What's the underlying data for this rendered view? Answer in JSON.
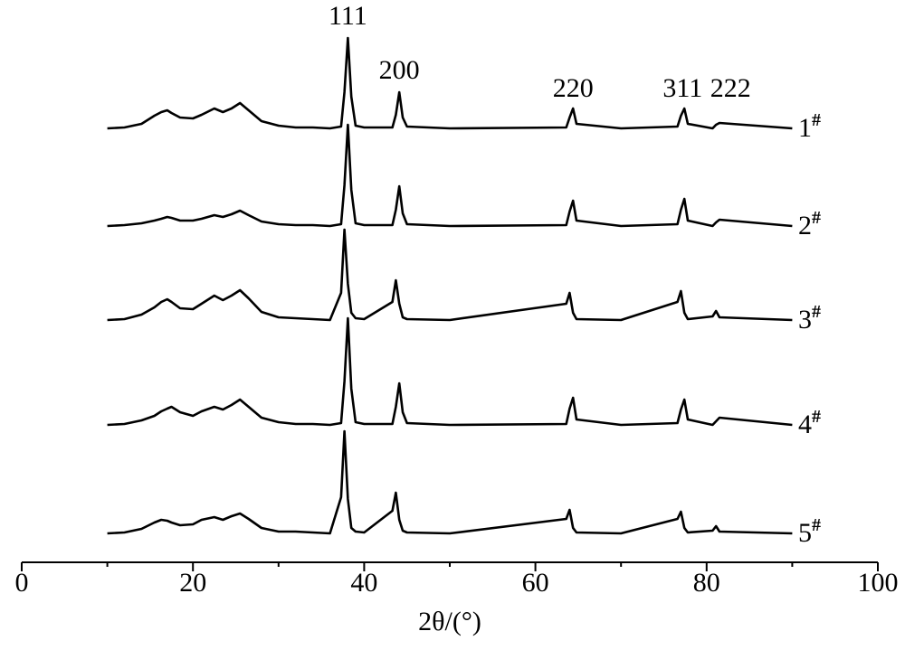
{
  "chart_data": {
    "type": "line",
    "xlabel": "2θ/(°)",
    "xlim": [
      0,
      100
    ],
    "xticks": [
      0,
      20,
      40,
      60,
      80,
      100
    ],
    "xminor": [
      10,
      30,
      50,
      70,
      90
    ],
    "x": [
      10,
      12,
      14,
      15.5,
      16.3,
      17,
      17.5,
      18.5,
      20,
      21,
      22.5,
      23.5,
      24.5,
      25.5,
      26.5,
      28,
      30,
      32,
      34,
      36,
      37.3,
      37.7,
      38.1,
      38.5,
      39,
      40,
      43.3,
      43.7,
      44.1,
      44.5,
      45,
      50,
      63.6,
      64,
      64.4,
      64.8,
      70,
      76.6,
      77,
      77.4,
      77.8,
      80.7,
      81.1,
      81.5,
      90
    ],
    "series": [
      {
        "name": "1#",
        "color": "#000000",
        "values": [
          0,
          1,
          5,
          14,
          18,
          20,
          17,
          12,
          11,
          15,
          22,
          18,
          22,
          28,
          20,
          8,
          3,
          1,
          1,
          0,
          2,
          40,
          100,
          35,
          3,
          1,
          1,
          15,
          40,
          12,
          2,
          0,
          1,
          12,
          22,
          5,
          0,
          2,
          14,
          22,
          5,
          0,
          4,
          6,
          0
        ]
      },
      {
        "name": "2#",
        "color": "#000000",
        "values": [
          0,
          1,
          3,
          6,
          8,
          10,
          9,
          6,
          6,
          8,
          12,
          10,
          13,
          17,
          12,
          5,
          2,
          1,
          1,
          0,
          2,
          45,
          112,
          40,
          3,
          1,
          1,
          18,
          44,
          14,
          2,
          0,
          1,
          16,
          28,
          6,
          0,
          2,
          18,
          30,
          6,
          0,
          4,
          7,
          0
        ]
      },
      {
        "name": "3#",
        "color": "#000000",
        "values": [
          0,
          1,
          6,
          14,
          20,
          23,
          20,
          13,
          12,
          18,
          27,
          22,
          27,
          33,
          24,
          9,
          3,
          2,
          1,
          0,
          30,
          100,
          40,
          8,
          2,
          1,
          20,
          44,
          18,
          3,
          1,
          0,
          18,
          30,
          8,
          1,
          0,
          20,
          32,
          8,
          1,
          4,
          10,
          3,
          0
        ]
      },
      {
        "name": "4#",
        "color": "#000000",
        "values": [
          0,
          1,
          5,
          10,
          15,
          18,
          20,
          14,
          10,
          15,
          20,
          17,
          22,
          28,
          20,
          8,
          3,
          1,
          1,
          0,
          2,
          48,
          118,
          40,
          3,
          1,
          1,
          20,
          46,
          14,
          2,
          0,
          1,
          18,
          30,
          6,
          0,
          2,
          17,
          28,
          6,
          0,
          4,
          8,
          0
        ]
      },
      {
        "name": "5#",
        "color": "#000000",
        "values": [
          0,
          1,
          5,
          12,
          15,
          14,
          12,
          9,
          10,
          15,
          18,
          15,
          19,
          22,
          16,
          6,
          2,
          2,
          1,
          0,
          40,
          113,
          38,
          6,
          2,
          1,
          25,
          45,
          15,
          3,
          1,
          0,
          16,
          26,
          6,
          1,
          0,
          16,
          24,
          6,
          1,
          3,
          8,
          2,
          0
        ]
      }
    ],
    "peak_labels": [
      {
        "text": "111",
        "x": 38.1
      },
      {
        "text": "200",
        "x": 44.1
      },
      {
        "text": "220",
        "x": 64.4
      },
      {
        "text": "311",
        "x": 77.2
      },
      {
        "text": "222",
        "x": 82.8
      }
    ]
  }
}
